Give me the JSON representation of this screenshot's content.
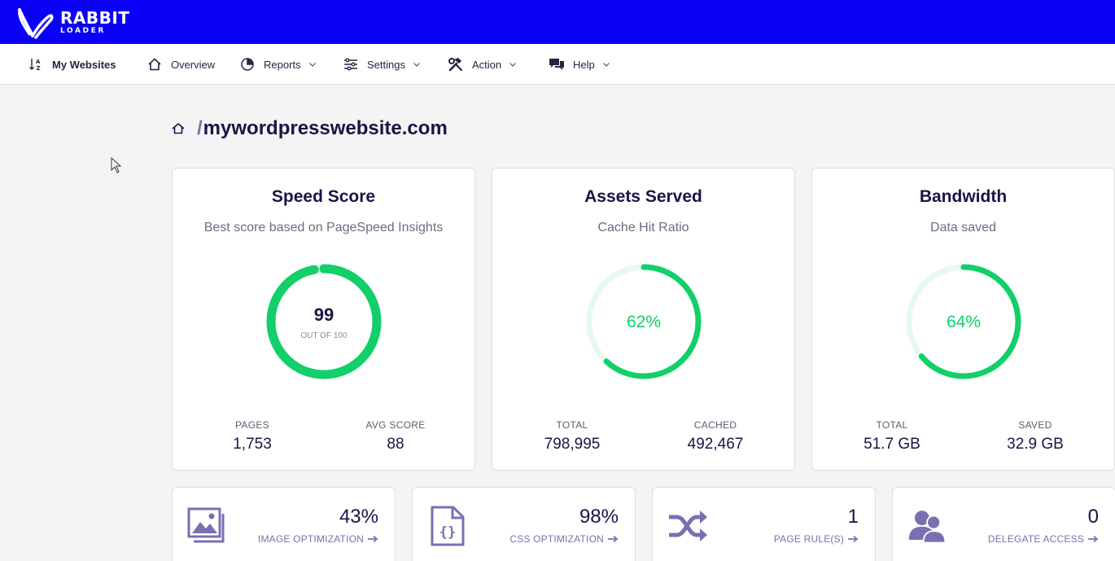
{
  "brand": {
    "line1": "RABBIT",
    "line2": "LOADER"
  },
  "nav": {
    "my_websites": "My Websites",
    "overview": "Overview",
    "reports": "Reports",
    "settings": "Settings",
    "action": "Action",
    "help": "Help"
  },
  "breadcrumb": {
    "slash": "/",
    "domain": "mywordpresswebsite.com"
  },
  "cards": [
    {
      "title": "Speed Score",
      "subtitle": "Best score based on PageSpeed Insights",
      "center_value": "99",
      "center_sub": "OUT OF 100",
      "ratio": 0.99,
      "stats": [
        {
          "label": "PAGES",
          "value": "1,753"
        },
        {
          "label": "AVG SCORE",
          "value": "88"
        }
      ]
    },
    {
      "title": "Assets Served",
      "subtitle": "Cache Hit Ratio",
      "center_value": "62%",
      "ratio": 0.62,
      "stats": [
        {
          "label": "TOTAL",
          "value": "798,995"
        },
        {
          "label": "CACHED",
          "value": "492,467"
        }
      ]
    },
    {
      "title": "Bandwidth",
      "subtitle": "Data saved",
      "center_value": "64%",
      "ratio": 0.64,
      "stats": [
        {
          "label": "TOTAL",
          "value": "51.7 GB"
        },
        {
          "label": "SAVED",
          "value": "32.9 GB"
        }
      ]
    }
  ],
  "tiles": [
    {
      "value": "43%",
      "label": "IMAGE OPTIMIZATION",
      "icon": "image-gallery-icon"
    },
    {
      "value": "98%",
      "label": "CSS OPTIMIZATION",
      "icon": "css-file-icon"
    },
    {
      "value": "1",
      "label": "PAGE RULE(S)",
      "icon": "shuffle-icon"
    },
    {
      "value": "0",
      "label": "DELEGATE ACCESS",
      "icon": "users-icon"
    }
  ],
  "colors": {
    "brand_blue": "#0a00f5",
    "progress_green": "#12cf6a",
    "track_light": "#e6f9ee",
    "text_dark": "#1f1246",
    "icon_purple": "#7c6fb0"
  }
}
